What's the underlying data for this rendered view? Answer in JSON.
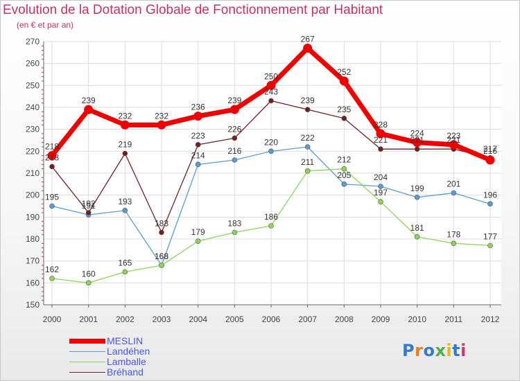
{
  "title": "Evolution de la Dotation Globale de Fonctionnement par Habitant",
  "subtitle": "(en € et par an)",
  "logo": {
    "text": "Proxiti",
    "colors": [
      "#3a78c8",
      "#e8801a",
      "#3a78c8",
      "#4ab04a",
      "#e8b81a",
      "#3a78c8",
      "#c83a6a"
    ]
  },
  "chart_data": {
    "type": "line",
    "x": [
      "2000",
      "2001",
      "2002",
      "2003",
      "2004",
      "2005",
      "2006",
      "2007",
      "2008",
      "2009",
      "2010",
      "2011",
      "2012"
    ],
    "ylim": [
      150,
      270
    ],
    "yticks": [
      150,
      160,
      170,
      180,
      190,
      200,
      210,
      220,
      230,
      240,
      250,
      260,
      270
    ],
    "grid": true,
    "legend_position": "bottom-left",
    "series": [
      {
        "name": "MESLIN",
        "color": "#ee0000",
        "values": [
          218,
          239,
          232,
          232,
          236,
          239,
          250,
          267,
          252,
          228,
          224,
          223,
          216
        ]
      },
      {
        "name": "Landéhen",
        "color": "#5b9bd0",
        "values": [
          195,
          191,
          193,
          168,
          214,
          216,
          220,
          222,
          205,
          204,
          199,
          201,
          196
        ]
      },
      {
        "name": "Lamballe",
        "color": "#8ed45a",
        "values": [
          162,
          160,
          165,
          168,
          179,
          183,
          186,
          211,
          212,
          197,
          181,
          178,
          177
        ]
      },
      {
        "name": "Bréhand",
        "color": "#6e2020",
        "values": [
          213,
          192,
          219,
          183,
          223,
          226,
          243,
          239,
          235,
          221,
          221,
          221,
          217
        ]
      }
    ]
  }
}
